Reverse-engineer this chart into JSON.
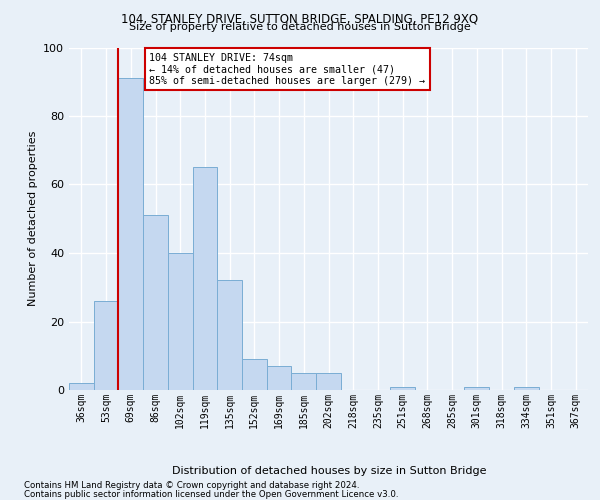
{
  "title1": "104, STANLEY DRIVE, SUTTON BRIDGE, SPALDING, PE12 9XQ",
  "title2": "Size of property relative to detached houses in Sutton Bridge",
  "xlabel": "Distribution of detached houses by size in Sutton Bridge",
  "ylabel": "Number of detached properties",
  "footnote1": "Contains HM Land Registry data © Crown copyright and database right 2024.",
  "footnote2": "Contains public sector information licensed under the Open Government Licence v3.0.",
  "categories": [
    "36sqm",
    "53sqm",
    "69sqm",
    "86sqm",
    "102sqm",
    "119sqm",
    "135sqm",
    "152sqm",
    "169sqm",
    "185sqm",
    "202sqm",
    "218sqm",
    "235sqm",
    "251sqm",
    "268sqm",
    "285sqm",
    "301sqm",
    "318sqm",
    "334sqm",
    "351sqm",
    "367sqm"
  ],
  "values": [
    2,
    26,
    91,
    51,
    40,
    65,
    32,
    9,
    7,
    5,
    5,
    0,
    0,
    1,
    0,
    0,
    1,
    0,
    1,
    0,
    0
  ],
  "bar_color": "#c5d8f0",
  "bar_edge_color": "#7aadd4",
  "vline_x": 1.5,
  "vline_color": "#cc0000",
  "annotation_line1": "104 STANLEY DRIVE: 74sqm",
  "annotation_line2": "← 14% of detached houses are smaller (47)",
  "annotation_line3": "85% of semi-detached houses are larger (279) →",
  "ann_box_edge_color": "#cc0000",
  "ylim": [
    0,
    100
  ],
  "yticks": [
    0,
    20,
    40,
    60,
    80,
    100
  ],
  "bg_color": "#e8f0f8",
  "grid_color": "#ffffff"
}
